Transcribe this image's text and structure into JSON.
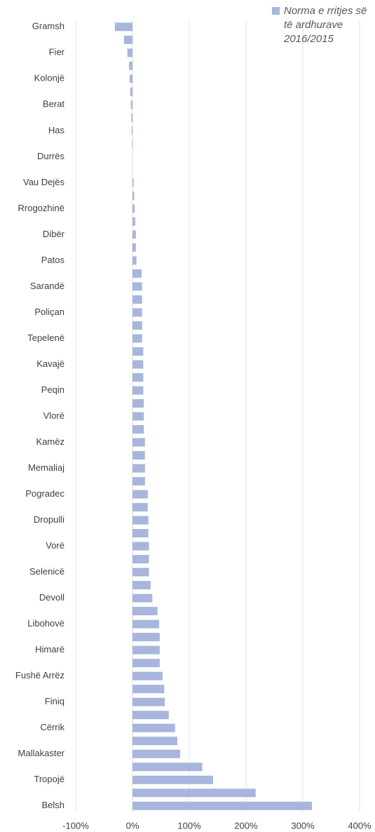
{
  "chart_data": {
    "type": "barh",
    "categories": [
      "Gramsh",
      null,
      "Fier",
      null,
      "Kolonjë",
      null,
      "Berat",
      null,
      "Has",
      null,
      "Durrës",
      null,
      "Vau Dejës",
      null,
      "Rrogozhinë",
      null,
      "Dibër",
      null,
      "Patos",
      null,
      "Sarandë",
      null,
      "Poliçan",
      null,
      "Tepelenë",
      null,
      "Kavajë",
      null,
      "Peqin",
      null,
      "Vlorë",
      null,
      "Kamëz",
      null,
      "Memaliaj",
      null,
      "Pogradec",
      null,
      "Dropulli",
      null,
      "Vorë",
      null,
      "Selenicë",
      null,
      "Devoll",
      null,
      "Libohovë",
      null,
      "Himarë",
      null,
      "Fushë Arrëz",
      null,
      "Finiq",
      null,
      "Cërrik",
      null,
      "Mallakaster",
      null,
      "Tropojë",
      null,
      "Belsh"
    ],
    "series": [
      {
        "name": "Norma e rritjes së të ardhurave 2016/2015",
        "color": "#a8b6dd",
        "values": [
          -31,
          -15,
          -9,
          -6,
          -5,
          -4,
          -3,
          -2,
          -1.5,
          -1,
          0,
          0,
          2,
          3,
          4,
          5,
          6,
          6,
          7,
          16,
          17,
          17,
          17,
          17,
          17,
          19,
          19,
          19,
          19,
          20,
          20,
          20,
          22,
          22,
          22,
          22,
          27,
          27,
          28,
          28,
          29,
          29,
          29,
          32,
          35,
          44,
          47,
          48,
          48,
          48,
          53,
          56,
          57,
          64,
          75,
          79,
          84,
          123,
          142,
          217,
          316
        ]
      }
    ],
    "xlim": [
      -100,
      400
    ],
    "xticks": [
      {
        "value": -100,
        "label": "-100%"
      },
      {
        "value": 0,
        "label": "0%"
      },
      {
        "value": 100,
        "label": "100%"
      },
      {
        "value": 200,
        "label": "200%"
      },
      {
        "value": 300,
        "label": "300%"
      },
      {
        "value": 400,
        "label": "400%"
      }
    ],
    "grid": true,
    "legend": "top-right"
  }
}
